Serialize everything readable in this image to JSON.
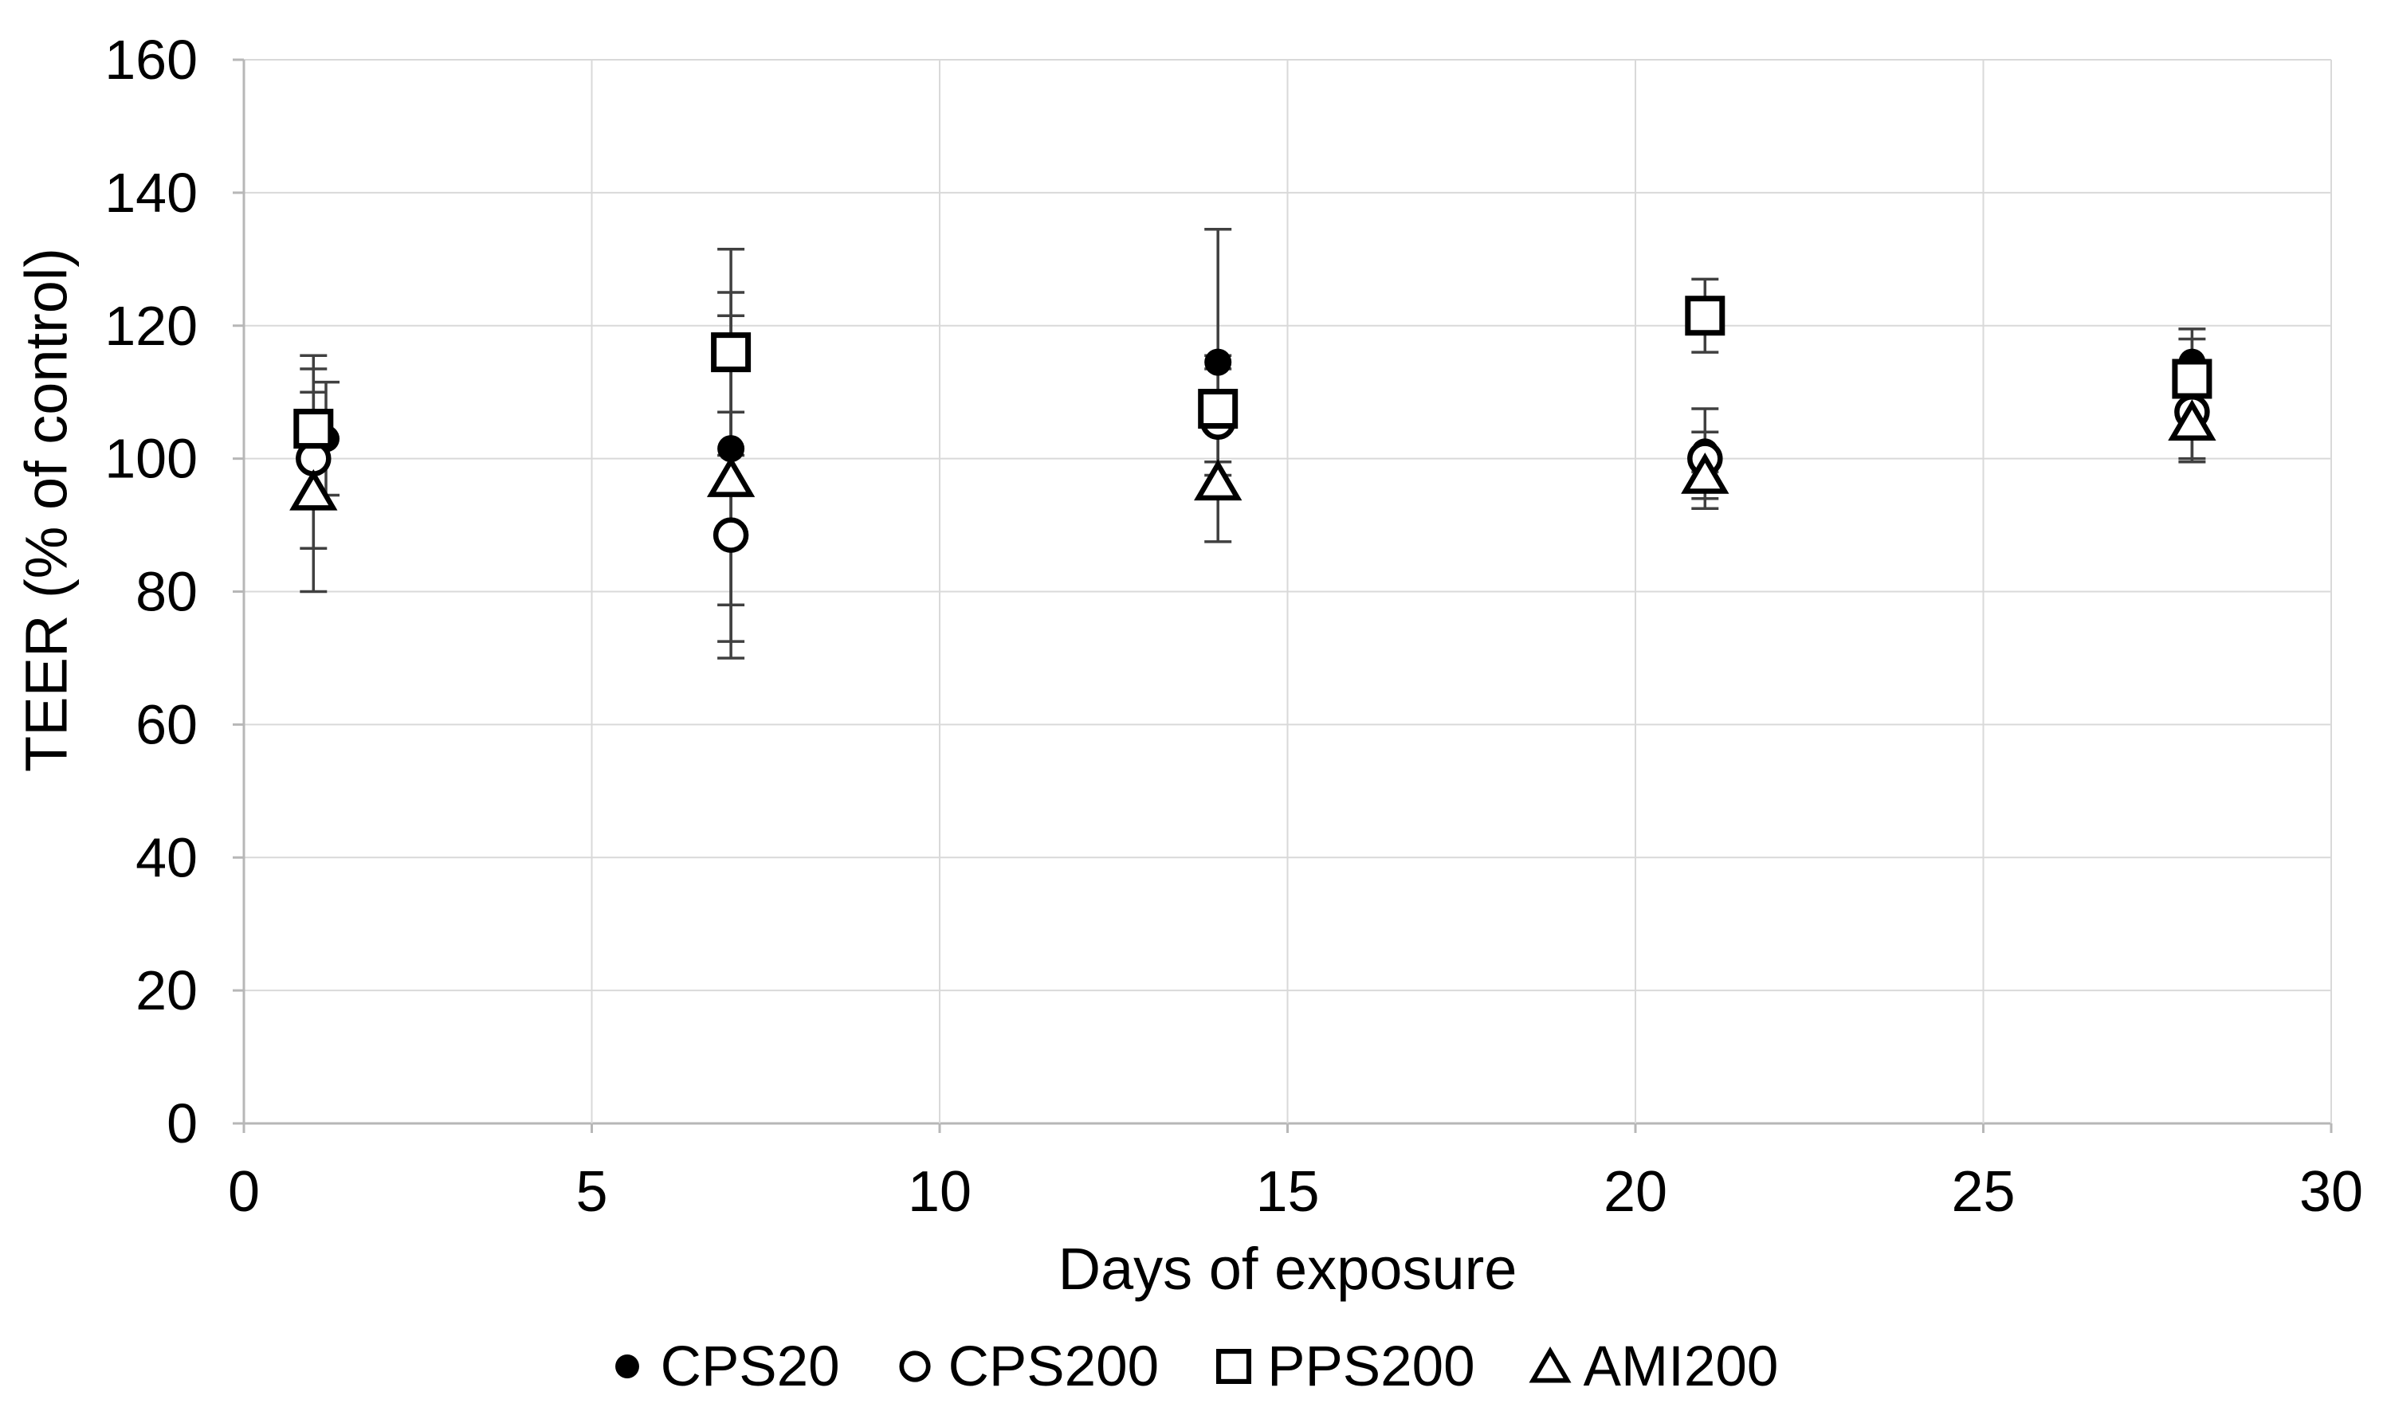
{
  "chart_data": {
    "type": "scatter",
    "title": "",
    "xlabel": "Days of exposure",
    "ylabel": "TEER (% of control)",
    "x": [
      1,
      7,
      14,
      21,
      28
    ],
    "series": [
      {
        "name": "CPS20",
        "marker": "filled-circle",
        "values": [
          103,
          101.5,
          114.5,
          101,
          114.5
        ],
        "errors": [
          8.5,
          23.5,
          20,
          3,
          5
        ],
        "x_jitter_days": [
          0.18,
          0,
          0,
          0,
          0
        ]
      },
      {
        "name": "CPS200",
        "marker": "open-circle",
        "values": [
          100,
          88.5,
          105.5,
          100,
          107
        ],
        "errors": [
          13.5,
          18.5,
          8,
          7.5,
          7
        ],
        "x_jitter_days": [
          0,
          0,
          0,
          0,
          0
        ]
      },
      {
        "name": "PPS200",
        "marker": "open-square",
        "values": [
          104.5,
          116,
          107.5,
          121.5,
          112
        ],
        "errors": [
          11,
          15.5,
          8,
          5.5,
          6
        ],
        "x_jitter_days": [
          0,
          0,
          0,
          0,
          0
        ]
      },
      {
        "name": "AMI200",
        "marker": "open-triangle",
        "values": [
          95,
          97,
          96.5,
          97.5,
          105.5
        ],
        "errors": [
          15,
          24.5,
          9,
          3.5,
          6
        ],
        "x_jitter_days": [
          0,
          0,
          0,
          0,
          0
        ]
      }
    ],
    "xlim": [
      0,
      30
    ],
    "ylim": [
      0,
      160
    ],
    "xticks": [
      0,
      5,
      10,
      15,
      20,
      25,
      30
    ],
    "yticks": [
      0,
      20,
      40,
      60,
      80,
      100,
      120,
      140,
      160
    ],
    "grid": true,
    "legend_position": "bottom",
    "colors": {
      "marker": "#000000",
      "marker_fill": "#ffffff",
      "error_bar": "#404040",
      "gridline": "#d9d9d9",
      "axis_line": "#b7b7b7",
      "text": "#000000",
      "background": "#ffffff"
    }
  }
}
